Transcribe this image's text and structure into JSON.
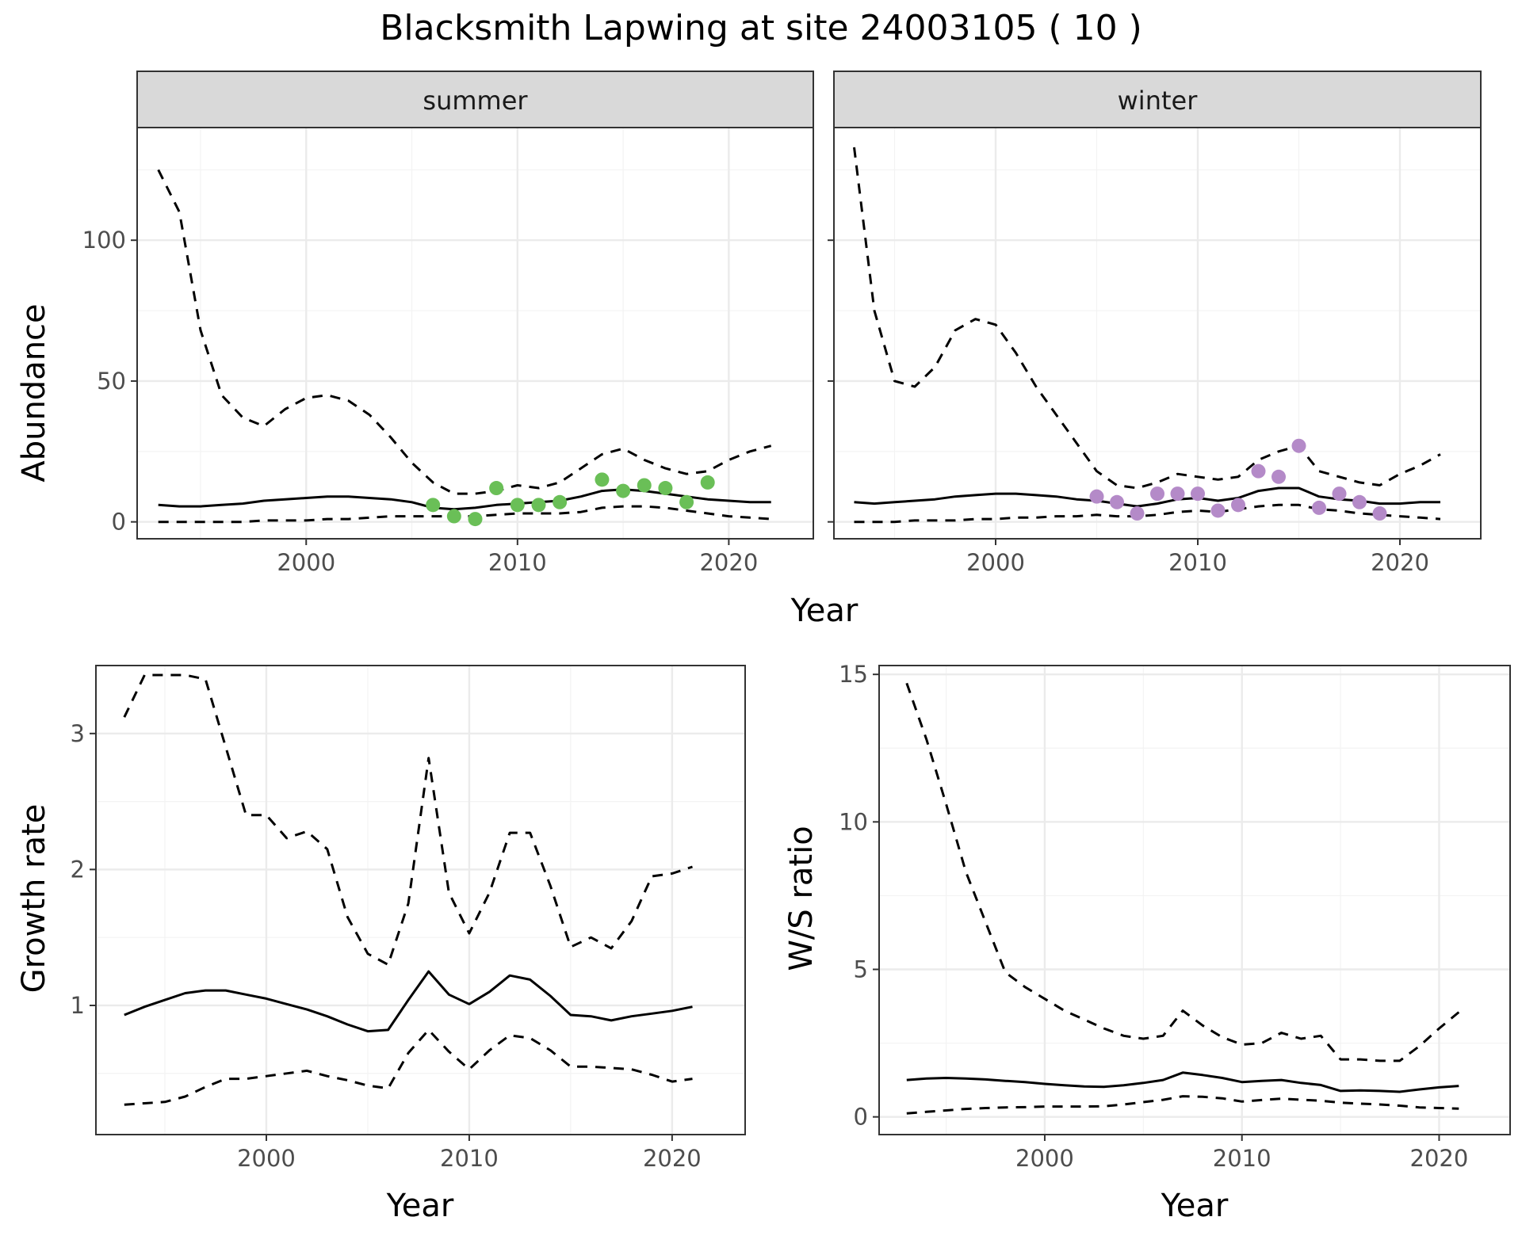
{
  "title": "Blacksmith Lapwing at site 24003105 ( 10 )",
  "colors": {
    "summer_points": "#6abf57",
    "winter_points": "#b48ac8",
    "lines": "#000000"
  },
  "chart_data": [
    {
      "type": "line",
      "facet": "summer",
      "xlabel": "Year",
      "ylabel": "Abundance",
      "xlim": [
        1992,
        2024
      ],
      "ylim": [
        -6,
        140
      ],
      "x_ticks": [
        2000,
        2010,
        2020
      ],
      "y_ticks": [
        0,
        50,
        100
      ],
      "series": [
        {
          "role": "upper",
          "dashed": true,
          "x": [
            1993,
            1994,
            1995,
            1996,
            1997,
            1998,
            1999,
            2000,
            2001,
            2002,
            2003,
            2004,
            2005,
            2006,
            2007,
            2008,
            2009,
            2010,
            2011,
            2012,
            2013,
            2014,
            2015,
            2016,
            2017,
            2018,
            2019,
            2020,
            2021,
            2022
          ],
          "y": [
            125,
            110,
            68,
            45,
            37,
            34,
            40,
            44,
            45,
            43,
            38,
            30,
            21,
            14,
            10,
            10,
            11,
            13,
            12,
            14,
            19,
            24,
            26,
            22,
            19,
            17,
            18,
            22,
            25,
            27
          ]
        },
        {
          "role": "mean",
          "dashed": false,
          "x": [
            1993,
            1994,
            1995,
            1996,
            1997,
            1998,
            1999,
            2000,
            2001,
            2002,
            2003,
            2004,
            2005,
            2006,
            2007,
            2008,
            2009,
            2010,
            2011,
            2012,
            2013,
            2014,
            2015,
            2016,
            2017,
            2018,
            2019,
            2020,
            2021,
            2022
          ],
          "y": [
            6,
            5.5,
            5.5,
            6,
            6.5,
            7.5,
            8,
            8.5,
            9,
            9,
            8.5,
            8,
            7,
            5,
            4.5,
            5,
            6,
            6.5,
            7,
            7.5,
            9,
            11,
            11.5,
            11,
            10,
            9,
            8,
            7.5,
            7,
            7
          ]
        },
        {
          "role": "lower",
          "dashed": true,
          "x": [
            1993,
            1994,
            1995,
            1996,
            1997,
            1998,
            1999,
            2000,
            2001,
            2002,
            2003,
            2004,
            2005,
            2006,
            2007,
            2008,
            2009,
            2010,
            2011,
            2012,
            2013,
            2014,
            2015,
            2016,
            2017,
            2018,
            2019,
            2020,
            2021,
            2022
          ],
          "y": [
            0,
            0,
            0,
            0,
            0,
            0.5,
            0.5,
            0.5,
            1,
            1,
            1.5,
            2,
            2,
            2,
            2,
            2,
            2.5,
            3,
            3,
            3,
            3.5,
            5,
            5.5,
            5.5,
            5,
            4,
            3,
            2,
            1.5,
            1
          ]
        },
        {
          "role": "observed",
          "points": true,
          "x": [
            2006,
            2007,
            2008,
            2009,
            2010,
            2011,
            2012,
            2014,
            2015,
            2016,
            2017,
            2018,
            2019
          ],
          "y": [
            6,
            2,
            1,
            12,
            6,
            6,
            7,
            15,
            11,
            13,
            12,
            7,
            14
          ]
        }
      ]
    },
    {
      "type": "line",
      "facet": "winter",
      "xlabel": "Year",
      "ylabel": "Abundance",
      "xlim": [
        1992,
        2024
      ],
      "ylim": [
        -6,
        140
      ],
      "x_ticks": [
        2000,
        2010,
        2020
      ],
      "y_ticks": [
        0,
        50,
        100
      ],
      "series": [
        {
          "role": "upper",
          "dashed": true,
          "x": [
            1993,
            1994,
            1995,
            1996,
            1997,
            1998,
            1999,
            2000,
            2001,
            2002,
            2003,
            2004,
            2005,
            2006,
            2007,
            2008,
            2009,
            2010,
            2011,
            2012,
            2013,
            2014,
            2015,
            2016,
            2017,
            2018,
            2019,
            2020,
            2021,
            2022
          ],
          "y": [
            133,
            75,
            50,
            48,
            55,
            68,
            72,
            70,
            60,
            48,
            38,
            28,
            18,
            13,
            12,
            14,
            17,
            16,
            15,
            16,
            22,
            25,
            27,
            18,
            16,
            14,
            13,
            17,
            20,
            24
          ]
        },
        {
          "role": "mean",
          "dashed": false,
          "x": [
            1993,
            1994,
            1995,
            1996,
            1997,
            1998,
            1999,
            2000,
            2001,
            2002,
            2003,
            2004,
            2005,
            2006,
            2007,
            2008,
            2009,
            2010,
            2011,
            2012,
            2013,
            2014,
            2015,
            2016,
            2017,
            2018,
            2019,
            2020,
            2021,
            2022
          ],
          "y": [
            7,
            6.5,
            7,
            7.5,
            8,
            9,
            9.5,
            10,
            10,
            9.5,
            9,
            8,
            7.5,
            6.5,
            5.5,
            6.5,
            8,
            8.5,
            7.5,
            8.5,
            11,
            12,
            12,
            9,
            8,
            7.5,
            6.5,
            6.5,
            7,
            7
          ]
        },
        {
          "role": "lower",
          "dashed": true,
          "x": [
            1993,
            1994,
            1995,
            1996,
            1997,
            1998,
            1999,
            2000,
            2001,
            2002,
            2003,
            2004,
            2005,
            2006,
            2007,
            2008,
            2009,
            2010,
            2011,
            2012,
            2013,
            2014,
            2015,
            2016,
            2017,
            2018,
            2019,
            2020,
            2021,
            2022
          ],
          "y": [
            0,
            0,
            0,
            0.5,
            0.5,
            0.5,
            1,
            1,
            1.5,
            1.5,
            2,
            2,
            2.5,
            2,
            2,
            2.5,
            3.5,
            4,
            3.5,
            4.5,
            5.5,
            6,
            6,
            4.5,
            4,
            3,
            2.5,
            2,
            1.5,
            1
          ]
        },
        {
          "role": "observed",
          "points": true,
          "x": [
            2005,
            2006,
            2007,
            2008,
            2009,
            2010,
            2011,
            2012,
            2013,
            2014,
            2015,
            2016,
            2017,
            2018,
            2019
          ],
          "y": [
            9,
            7,
            3,
            10,
            10,
            10,
            4,
            6,
            18,
            16,
            27,
            5,
            10,
            7,
            3
          ]
        }
      ]
    },
    {
      "type": "line",
      "facet": "",
      "xlabel": "Year",
      "ylabel": "Growth rate",
      "xlim": [
        1991.6,
        2023.6
      ],
      "ylim": [
        0.05,
        3.5
      ],
      "x_ticks": [
        2000,
        2010,
        2020
      ],
      "y_ticks": [
        1,
        2,
        3
      ],
      "series": [
        {
          "role": "upper",
          "dashed": true,
          "x": [
            1993,
            1994,
            1995,
            1996,
            1997,
            1998,
            1999,
            2000,
            2001,
            2002,
            2003,
            2004,
            2005,
            2006,
            2007,
            2008,
            2009,
            2010,
            2011,
            2012,
            2013,
            2014,
            2015,
            2016,
            2017,
            2018,
            2019,
            2020,
            2021
          ],
          "y": [
            3.12,
            3.43,
            3.43,
            3.43,
            3.4,
            2.9,
            2.4,
            2.4,
            2.23,
            2.28,
            2.15,
            1.65,
            1.38,
            1.3,
            1.75,
            2.82,
            1.83,
            1.53,
            1.83,
            2.27,
            2.27,
            1.88,
            1.43,
            1.5,
            1.42,
            1.62,
            1.95,
            1.97,
            2.02
          ]
        },
        {
          "role": "mean",
          "dashed": false,
          "x": [
            1993,
            1994,
            1995,
            1996,
            1997,
            1998,
            1999,
            2000,
            2001,
            2002,
            2003,
            2004,
            2005,
            2006,
            2007,
            2008,
            2009,
            2010,
            2011,
            2012,
            2013,
            2014,
            2015,
            2016,
            2017,
            2018,
            2019,
            2020,
            2021
          ],
          "y": [
            0.93,
            0.99,
            1.04,
            1.09,
            1.11,
            1.11,
            1.08,
            1.05,
            1.01,
            0.97,
            0.92,
            0.86,
            0.81,
            0.82,
            1.04,
            1.25,
            1.08,
            1.01,
            1.1,
            1.22,
            1.19,
            1.07,
            0.93,
            0.92,
            0.89,
            0.92,
            0.94,
            0.96,
            0.99
          ]
        },
        {
          "role": "lower",
          "dashed": true,
          "x": [
            1993,
            1994,
            1995,
            1996,
            1997,
            1998,
            1999,
            2000,
            2001,
            2002,
            2003,
            2004,
            2005,
            2006,
            2007,
            2008,
            2009,
            2010,
            2011,
            2012,
            2013,
            2014,
            2015,
            2016,
            2017,
            2018,
            2019,
            2020,
            2021
          ],
          "y": [
            0.27,
            0.28,
            0.29,
            0.33,
            0.4,
            0.46,
            0.46,
            0.48,
            0.5,
            0.52,
            0.48,
            0.45,
            0.41,
            0.39,
            0.65,
            0.82,
            0.66,
            0.53,
            0.67,
            0.78,
            0.76,
            0.67,
            0.55,
            0.55,
            0.54,
            0.53,
            0.49,
            0.44,
            0.46
          ]
        }
      ]
    },
    {
      "type": "line",
      "facet": "",
      "xlabel": "Year",
      "ylabel": "W/S ratio",
      "xlim": [
        1991.6,
        2023.6
      ],
      "ylim": [
        -0.6,
        15.3
      ],
      "x_ticks": [
        2000,
        2010,
        2020
      ],
      "y_ticks": [
        0,
        5,
        10,
        15
      ],
      "series": [
        {
          "role": "upper",
          "dashed": true,
          "x": [
            1993,
            1994,
            1995,
            1996,
            1997,
            1998,
            1999,
            2000,
            2001,
            2002,
            2003,
            2004,
            2005,
            2006,
            2007,
            2008,
            2009,
            2010,
            2011,
            2012,
            2013,
            2014,
            2015,
            2016,
            2017,
            2018,
            2019,
            2020,
            2021
          ],
          "y": [
            14.7,
            12.8,
            10.6,
            8.3,
            6.6,
            4.9,
            4.4,
            4.0,
            3.6,
            3.3,
            3.0,
            2.75,
            2.65,
            2.75,
            3.6,
            3.1,
            2.7,
            2.45,
            2.5,
            2.85,
            2.65,
            2.75,
            1.95,
            1.95,
            1.9,
            1.9,
            2.4,
            3.0,
            3.55
          ]
        },
        {
          "role": "mean",
          "dashed": false,
          "x": [
            1993,
            1994,
            1995,
            1996,
            1997,
            1998,
            1999,
            2000,
            2001,
            2002,
            2003,
            2004,
            2005,
            2006,
            2007,
            2008,
            2009,
            2010,
            2011,
            2012,
            2013,
            2014,
            2015,
            2016,
            2017,
            2018,
            2019,
            2020,
            2021
          ],
          "y": [
            1.25,
            1.3,
            1.32,
            1.3,
            1.27,
            1.22,
            1.18,
            1.12,
            1.07,
            1.03,
            1.02,
            1.07,
            1.15,
            1.25,
            1.5,
            1.42,
            1.32,
            1.18,
            1.22,
            1.25,
            1.15,
            1.08,
            0.88,
            0.9,
            0.88,
            0.85,
            0.93,
            1.0,
            1.05
          ]
        },
        {
          "role": "lower",
          "dashed": true,
          "x": [
            1993,
            1994,
            1995,
            1996,
            1997,
            1998,
            1999,
            2000,
            2001,
            2002,
            2003,
            2004,
            2005,
            2006,
            2007,
            2008,
            2009,
            2010,
            2011,
            2012,
            2013,
            2014,
            2015,
            2016,
            2017,
            2018,
            2019,
            2020,
            2021
          ],
          "y": [
            0.12,
            0.17,
            0.22,
            0.27,
            0.3,
            0.32,
            0.33,
            0.35,
            0.35,
            0.35,
            0.36,
            0.42,
            0.5,
            0.58,
            0.7,
            0.68,
            0.63,
            0.52,
            0.57,
            0.62,
            0.58,
            0.55,
            0.48,
            0.45,
            0.42,
            0.38,
            0.32,
            0.3,
            0.28
          ]
        }
      ]
    }
  ]
}
